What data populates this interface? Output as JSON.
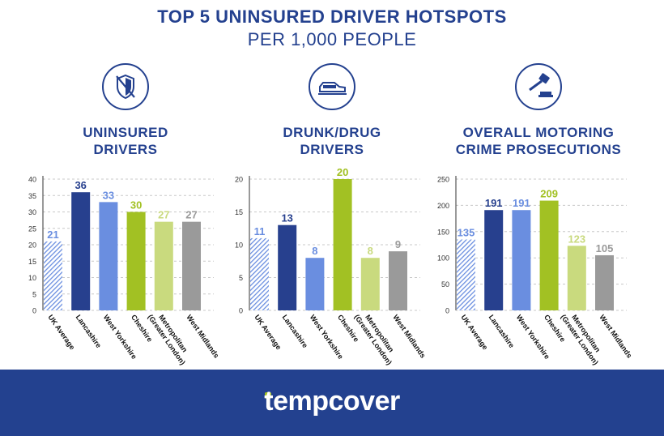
{
  "header": {
    "title": "TOP 5 UNINSURED DRIVER HOTSPOTS",
    "subtitle": "PER 1,000 PEOPLE"
  },
  "colors": {
    "navy": "#24418f",
    "uk_average_hatch": "#6a8ee0",
    "lancashire": "#27408e",
    "west_yorkshire": "#6a8ee0",
    "cheshire": "#a2c123",
    "metropolitan": "#c9da7e",
    "west_midlands": "#9a9a9a",
    "footer": "#23418f"
  },
  "panels": [
    {
      "title_line1": "UNINSURED",
      "title_line2": "DRIVERS",
      "icon": "shield-slash-icon"
    },
    {
      "title_line1": "DRUNK/DRUG",
      "title_line2": "DRIVERS",
      "icon": "car-icon"
    },
    {
      "title_line1": "OVERALL MOTORING",
      "title_line2": "CRIME PROSECUTIONS",
      "icon": "gavel-icon"
    }
  ],
  "chart_data": [
    {
      "type": "bar",
      "categories": [
        "UK Average",
        "Lancashire",
        "West Yorkshire",
        "Cheshire",
        "Metropolitan\n(Greater London)",
        "West Midlands"
      ],
      "values": [
        21,
        36,
        33,
        30,
        27,
        27
      ],
      "ylim": [
        0,
        40
      ],
      "yticks": [
        0,
        5,
        10,
        15,
        20,
        25,
        30,
        35,
        40
      ],
      "grid": true
    },
    {
      "type": "bar",
      "categories": [
        "UK Average",
        "Lancashire",
        "West Yorkshire",
        "Cheshire",
        "Metropolitan\n(Greater London)",
        "West Midlands"
      ],
      "values": [
        11,
        13,
        8,
        20,
        8,
        9
      ],
      "ylim": [
        0,
        20
      ],
      "yticks": [
        0,
        5,
        10,
        15,
        20
      ],
      "grid": true
    },
    {
      "type": "bar",
      "categories": [
        "UK Average",
        "Lancashire",
        "West Yorkshire",
        "Cheshire",
        "Metropolitan\n(Greater London)",
        "West Midlands"
      ],
      "values": [
        135,
        191,
        191,
        209,
        123,
        105
      ],
      "ylim": [
        0,
        250
      ],
      "yticks": [
        0,
        50,
        100,
        150,
        200,
        250
      ],
      "grid": true
    }
  ],
  "footer": {
    "logo_text": "tempcover"
  }
}
